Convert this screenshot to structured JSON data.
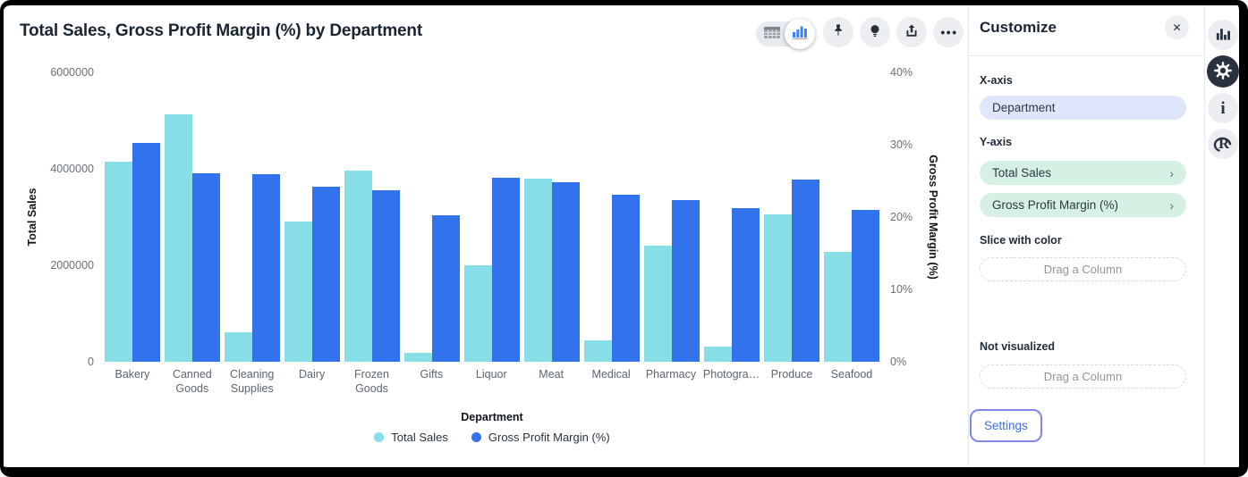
{
  "title": "Total Sales, Gross Profit Margin (%) by Department",
  "chart_data": {
    "type": "bar",
    "title": "Total Sales, Gross Profit Margin (%) by Department",
    "categories": [
      "Bakery",
      "Canned Goods",
      "Cleaning Supplies",
      "Dairy",
      "Frozen Goods",
      "Gifts",
      "Liquor",
      "Meat",
      "Medical",
      "Pharmacy",
      "Photogra…",
      "Produce",
      "Seafood"
    ],
    "series": [
      {
        "name": "Total Sales",
        "axis": "left",
        "color": "#87DEE6",
        "values": [
          4150000,
          5130000,
          620000,
          2900000,
          3970000,
          190000,
          2000000,
          3800000,
          450000,
          2400000,
          310000,
          3050000,
          2270000
        ]
      },
      {
        "name": "Gross Profit Margin (%)",
        "axis": "right",
        "color": "#3273ED",
        "values": [
          30.2,
          26.1,
          25.9,
          24.2,
          23.7,
          20.3,
          25.5,
          24.8,
          23.1,
          22.4,
          21.3,
          25.2,
          21.0
        ]
      }
    ],
    "left_axis": {
      "label": "Total Sales",
      "ticks": [
        "6000000",
        "4000000",
        "2000000",
        "0"
      ],
      "range": [
        0,
        6000000
      ]
    },
    "right_axis": {
      "label": "Gross Profit Margin (%)",
      "ticks": [
        "40%",
        "30%",
        "20%",
        "10%",
        "0%"
      ],
      "range": [
        0,
        40
      ]
    },
    "xlabel": "Department",
    "legend": [
      "Total Sales",
      "Gross Profit Margin (%)"
    ],
    "grid": false,
    "legend_position": "bottom"
  },
  "panel": {
    "title": "Customize",
    "x_axis_label": "X-axis",
    "x_axis_value": "Department",
    "y_axis_label": "Y-axis",
    "y_axis_values": [
      "Total Sales",
      "Gross Profit Margin (%)"
    ],
    "slice_label": "Slice with color",
    "slice_placeholder": "Drag a Column",
    "not_visualized_label": "Not visualized",
    "not_visualized_placeholder": "Drag a Column",
    "settings_label": "Settings"
  },
  "icons": {
    "close": "✕",
    "chevron_right": "›",
    "ellipsis": "•••",
    "info_glyph": "i",
    "r_glyph": "R",
    "toolbar": [
      "table-view",
      "chart-view",
      "pushpin",
      "lightbulb",
      "share-upload",
      "more-options"
    ],
    "rail": [
      "chart-type",
      "settings-gear",
      "info",
      "r-language"
    ]
  },
  "colors": {
    "series_total_sales": "#87DEE6",
    "series_gross_margin": "#3273ED",
    "x_pill_bg": "#DFE6FB",
    "y_pill_bg": "#D6F1E3",
    "settings_link": "#3D6FE8",
    "active_icon_blue": "#3B82F6"
  }
}
